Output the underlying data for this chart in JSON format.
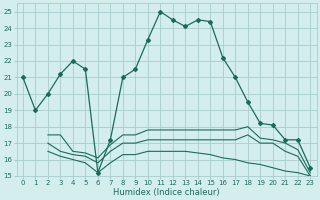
{
  "xlabel": "Humidex (Indice chaleur)",
  "xlim": [
    -0.5,
    23.5
  ],
  "ylim": [
    15,
    25.5
  ],
  "yticks": [
    15,
    16,
    17,
    18,
    19,
    20,
    21,
    22,
    23,
    24,
    25
  ],
  "xticks": [
    0,
    1,
    2,
    3,
    4,
    5,
    6,
    7,
    8,
    9,
    10,
    11,
    12,
    13,
    14,
    15,
    16,
    17,
    18,
    19,
    20,
    21,
    22,
    23
  ],
  "bg_color": "#d4eeee",
  "grid_color": "#a8cccc",
  "line_color": "#1a6b5a",
  "line1_x": [
    0,
    1,
    2,
    3,
    4,
    5,
    6,
    7,
    8,
    9,
    10,
    11,
    12,
    13,
    14,
    15,
    16,
    17,
    18,
    19,
    20,
    21,
    22,
    23
  ],
  "line1_y": [
    21.0,
    19.0,
    20.0,
    21.2,
    22.0,
    21.5,
    15.2,
    17.2,
    21.0,
    21.5,
    23.3,
    25.0,
    24.5,
    24.1,
    24.5,
    24.4,
    22.2,
    21.0,
    19.5,
    18.2,
    18.1,
    17.2,
    17.2,
    15.5
  ],
  "line2_x": [
    2,
    3,
    4,
    5,
    6,
    7,
    8,
    9,
    10,
    11,
    12,
    13,
    14,
    15,
    16,
    17,
    18,
    19,
    20,
    21,
    22,
    23
  ],
  "line2_y": [
    17.5,
    17.5,
    16.5,
    16.4,
    16.1,
    16.9,
    17.5,
    17.5,
    17.8,
    17.8,
    17.8,
    17.8,
    17.8,
    17.8,
    17.8,
    17.8,
    18.0,
    17.3,
    17.2,
    17.0,
    16.6,
    15.2
  ],
  "line3_x": [
    2,
    3,
    4,
    5,
    6,
    7,
    8,
    9,
    10,
    11,
    12,
    13,
    14,
    15,
    16,
    17,
    18,
    19,
    20,
    21,
    22,
    23
  ],
  "line3_y": [
    17.0,
    16.5,
    16.3,
    16.2,
    15.8,
    16.5,
    17.0,
    17.0,
    17.2,
    17.2,
    17.2,
    17.2,
    17.2,
    17.2,
    17.2,
    17.2,
    17.5,
    17.0,
    17.0,
    16.5,
    16.2,
    15.0
  ],
  "line4_x": [
    2,
    3,
    4,
    5,
    6,
    7,
    8,
    9,
    10,
    11,
    12,
    13,
    14,
    15,
    16,
    17,
    18,
    19,
    20,
    21,
    22,
    23
  ],
  "line4_y": [
    16.5,
    16.2,
    16.0,
    15.8,
    15.2,
    15.8,
    16.3,
    16.3,
    16.5,
    16.5,
    16.5,
    16.5,
    16.4,
    16.3,
    16.1,
    16.0,
    15.8,
    15.7,
    15.5,
    15.3,
    15.2,
    15.0
  ]
}
